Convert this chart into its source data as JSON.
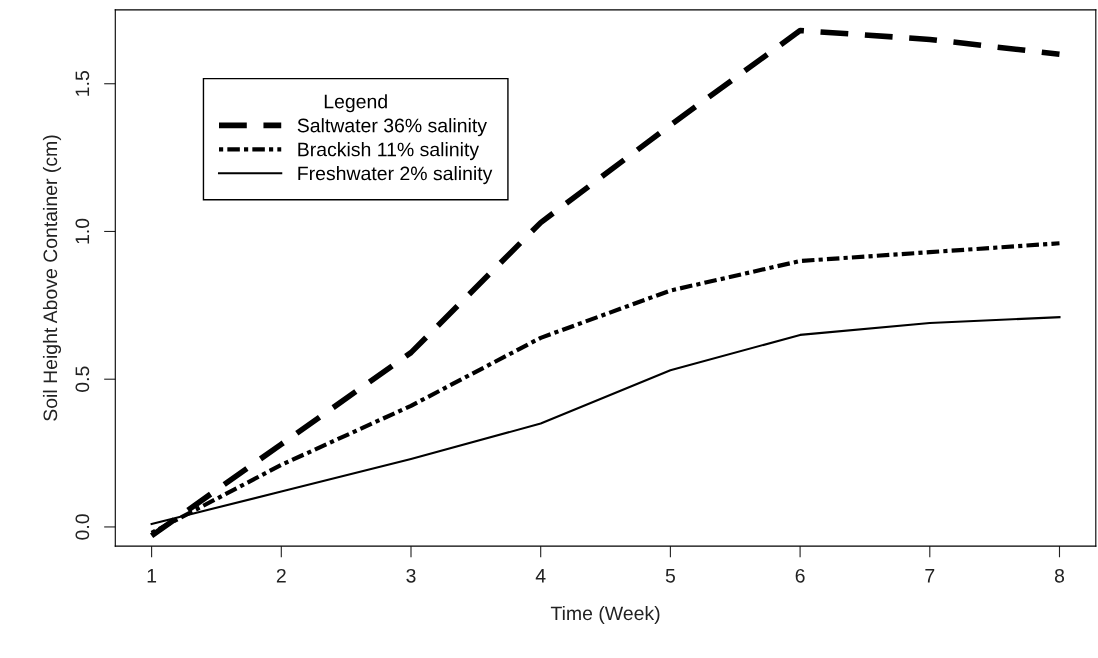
{
  "chart_data": {
    "type": "line",
    "xlabel": "Time (Week)",
    "ylabel": "Soil Height Above Container (cm)",
    "legend_title": "Legend",
    "legend": "top left",
    "grid": false,
    "marker": "none",
    "x": [
      1,
      2,
      3,
      4,
      5,
      6,
      7,
      8
    ],
    "xlim": [
      0.72,
      8.28
    ],
    "xticks": [
      1,
      2,
      3,
      4,
      5,
      6,
      7,
      8
    ],
    "ylim": [
      -0.065,
      1.75
    ],
    "yticks": [
      {
        "value": 0,
        "label": "0.0"
      },
      0.5,
      {
        "value": 1,
        "label": "1.0"
      },
      1.5
    ],
    "series": [
      {
        "name": "Saltwater 36% salinity",
        "color": "#000000",
        "line_style": "dashed",
        "values": [
          -0.03,
          0.28,
          0.59,
          1.03,
          1.36,
          1.68,
          1.65,
          1.6
        ]
      },
      {
        "name": "Brackish 11% salinity",
        "color": "#000000",
        "line_style": "dashdot",
        "values": [
          -0.02,
          0.21,
          0.41,
          0.64,
          0.8,
          0.9,
          0.93,
          0.96
        ]
      },
      {
        "name": "Freshwater 2% salinity",
        "color": "#000000",
        "line_style": "solid",
        "values": [
          0.01,
          0.12,
          0.23,
          0.35,
          0.53,
          0.65,
          0.69,
          0.71
        ]
      }
    ]
  }
}
